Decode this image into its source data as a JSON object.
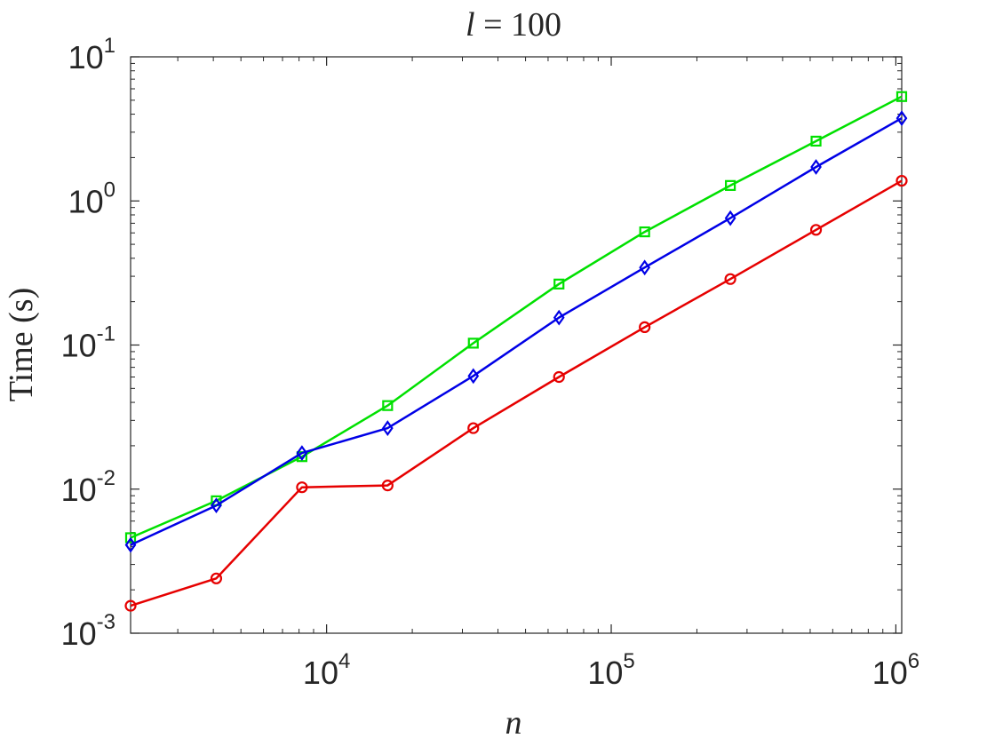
{
  "chart_data": {
    "type": "line",
    "title": "l = 100",
    "xlabel": "n",
    "ylabel": "Time (s)",
    "x_scale": "log",
    "y_scale": "log",
    "xlim": [
      2048,
      1048576
    ],
    "ylim": [
      0.001,
      10
    ],
    "x_ticks": [
      {
        "value": 10000,
        "base": "10",
        "exp": "4"
      },
      {
        "value": 100000,
        "base": "10",
        "exp": "5"
      },
      {
        "value": 1000000,
        "base": "10",
        "exp": "6"
      }
    ],
    "y_ticks": [
      {
        "value": 0.001,
        "base": "10",
        "exp": "-3"
      },
      {
        "value": 0.01,
        "base": "10",
        "exp": "-2"
      },
      {
        "value": 0.1,
        "base": "10",
        "exp": "-1"
      },
      {
        "value": 1,
        "base": "10",
        "exp": "0"
      },
      {
        "value": 10,
        "base": "10",
        "exp": "1"
      }
    ],
    "grid": false,
    "x": [
      2048,
      4096,
      8192,
      16384,
      32768,
      65536,
      131072,
      262144,
      524288,
      1048576
    ],
    "series": [
      {
        "color": "#00e000",
        "marker": "square",
        "values": [
          0.0046,
          0.0083,
          0.0168,
          0.038,
          0.103,
          0.265,
          0.61,
          1.28,
          2.6,
          5.3
        ]
      },
      {
        "color": "#0000e6",
        "marker": "diamond",
        "values": [
          0.0041,
          0.0077,
          0.0178,
          0.0265,
          0.061,
          0.155,
          0.345,
          0.76,
          1.72,
          3.75
        ]
      },
      {
        "color": "#e60000",
        "marker": "circle",
        "values": [
          0.00155,
          0.0024,
          0.0103,
          0.0106,
          0.0265,
          0.06,
          0.133,
          0.287,
          0.63,
          1.38
        ]
      }
    ]
  }
}
